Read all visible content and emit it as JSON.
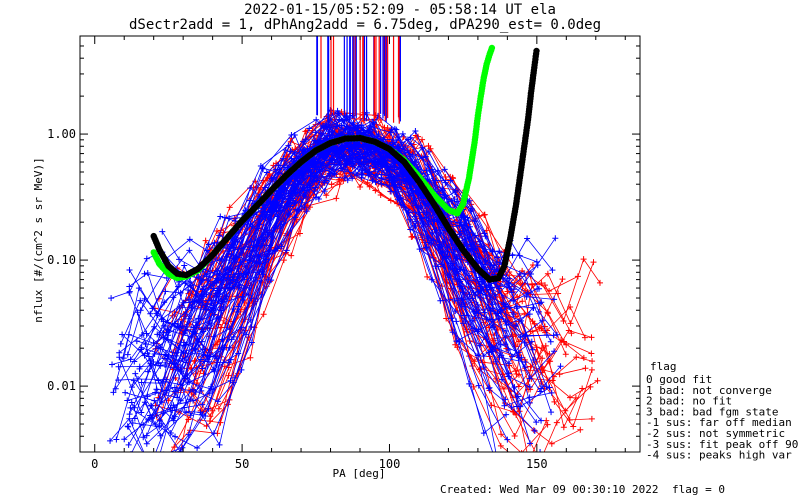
{
  "chart_data": {
    "type": "line",
    "title": "2022-01-15/05:52:09 - 05:58:14 UT ela",
    "subtitle": "dSectr2add = 1, dPhAng2add = 6.75deg, dPA290_est=    0.0deg",
    "xlabel": "PA [deg]",
    "ylabel": "nflux [#/(cm^2 s sr MeV)]",
    "xlim": [
      -5,
      185
    ],
    "ylim": [
      0.003,
      6.0
    ],
    "yscale": "log",
    "x_ticks": [
      {
        "v": 0,
        "label": "0"
      },
      {
        "v": 50,
        "label": "50"
      },
      {
        "v": 100,
        "label": "100"
      },
      {
        "v": 150,
        "label": "150"
      }
    ],
    "y_ticks": [
      {
        "v": 0.01,
        "label": "0.01"
      },
      {
        "v": 0.1,
        "label": "0.10"
      },
      {
        "v": 1.0,
        "label": "1.00"
      }
    ],
    "grid": false,
    "legend_position": "right",
    "colors": {
      "red": "#ff0000",
      "blue": "#0000ff",
      "green": "#00ff00",
      "black": "#000000"
    },
    "series": [
      {
        "color": "green",
        "style": "dotted-thick",
        "x": [
          20,
          22,
          25,
          28,
          31,
          35,
          40,
          45,
          50,
          55,
          60,
          65,
          70,
          75,
          80,
          85,
          90,
          95,
          100,
          105,
          110,
          115,
          120,
          123,
          125,
          127,
          129,
          130,
          131,
          132,
          133,
          134,
          135
        ],
        "y": [
          0.115,
          0.093,
          0.078,
          0.072,
          0.074,
          0.083,
          0.11,
          0.15,
          0.205,
          0.27,
          0.36,
          0.47,
          0.6,
          0.74,
          0.85,
          0.92,
          0.93,
          0.87,
          0.76,
          0.62,
          0.46,
          0.33,
          0.25,
          0.235,
          0.28,
          0.45,
          0.9,
          1.4,
          2.0,
          2.8,
          3.6,
          4.3,
          5.0
        ]
      },
      {
        "color": "black",
        "style": "dotted-thick",
        "x": [
          20,
          22,
          25,
          28,
          31,
          35,
          40,
          45,
          50,
          55,
          60,
          65,
          70,
          75,
          80,
          85,
          90,
          95,
          100,
          105,
          110,
          115,
          120,
          125,
          130,
          134,
          137,
          139,
          141,
          143,
          145,
          147,
          148,
          149,
          150
        ],
        "y": [
          0.155,
          0.12,
          0.09,
          0.078,
          0.076,
          0.085,
          0.11,
          0.15,
          0.205,
          0.27,
          0.36,
          0.47,
          0.6,
          0.74,
          0.85,
          0.92,
          0.93,
          0.87,
          0.76,
          0.6,
          0.42,
          0.28,
          0.18,
          0.12,
          0.085,
          0.07,
          0.072,
          0.09,
          0.15,
          0.28,
          0.6,
          1.3,
          2.1,
          3.2,
          4.8
        ]
      }
    ],
    "annotations": {
      "vertical_lines_near_pa": "75-105"
    }
  },
  "legend": {
    "title": "flag",
    "items": [
      "0 good fit",
      "1 bad: not converge",
      "2 bad: no fit",
      "3 bad: bad fgm state",
      "-1 sus: far off median",
      "-2 sus: not symmetric",
      "-3 sus: fit peak off 90",
      "-4 sus: peaks high var"
    ]
  },
  "footer": {
    "created": "Created: Wed Mar 09 00:30:10 2022",
    "flag": "flag = 0"
  }
}
